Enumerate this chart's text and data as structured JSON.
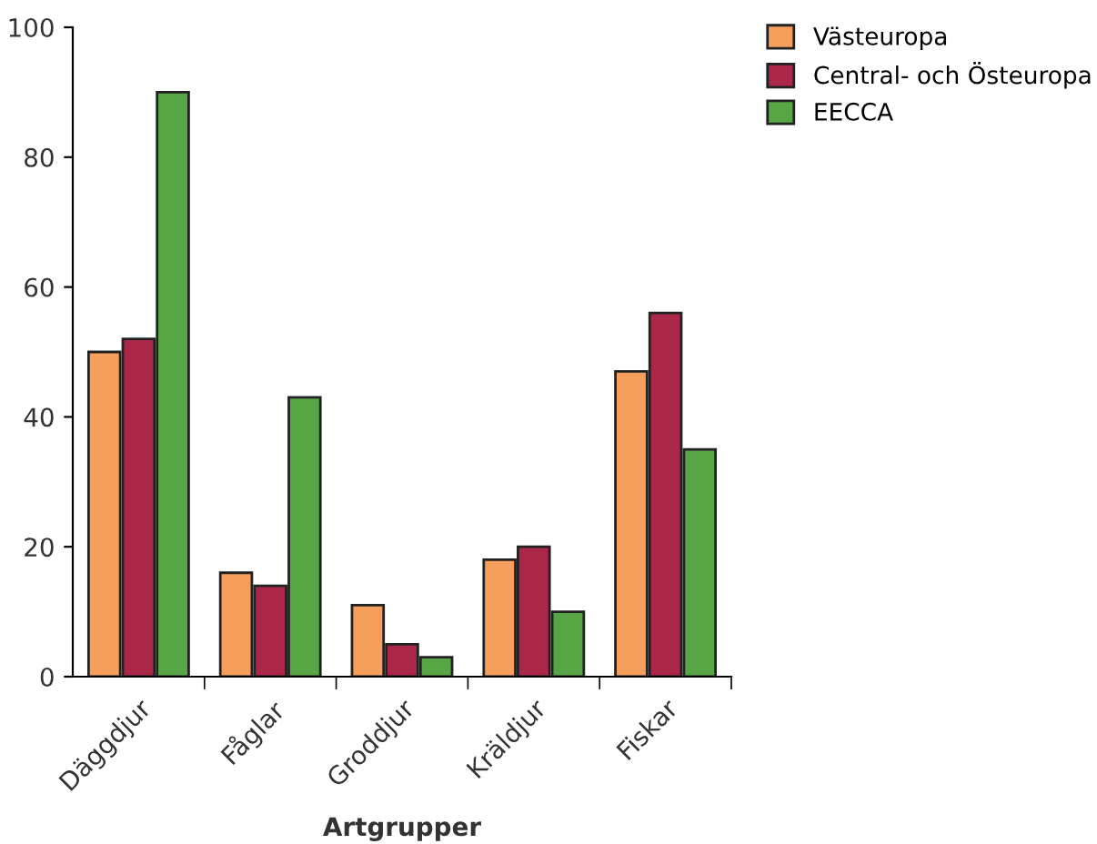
{
  "chart_data": {
    "type": "bar",
    "xlabel": "Artgrupper",
    "categories": [
      "Däggdjur",
      "Fåglar",
      "Groddjur",
      "Kräldjur",
      "Fiskar"
    ],
    "series": [
      {
        "name": "Västeuropa",
        "color": "#f69f5c",
        "values": [
          50,
          16,
          11,
          18,
          47
        ]
      },
      {
        "name": "Central- och Östeuropa",
        "color": "#ab2749",
        "values": [
          52,
          14,
          5,
          20,
          56
        ]
      },
      {
        "name": "EECCA",
        "color": "#57a545",
        "values": [
          90,
          43,
          3,
          10,
          35
        ]
      }
    ],
    "ylim": [
      0,
      100
    ],
    "yticks": [
      0,
      20,
      40,
      60,
      80,
      100
    ],
    "grid": false,
    "legend": "top right"
  }
}
